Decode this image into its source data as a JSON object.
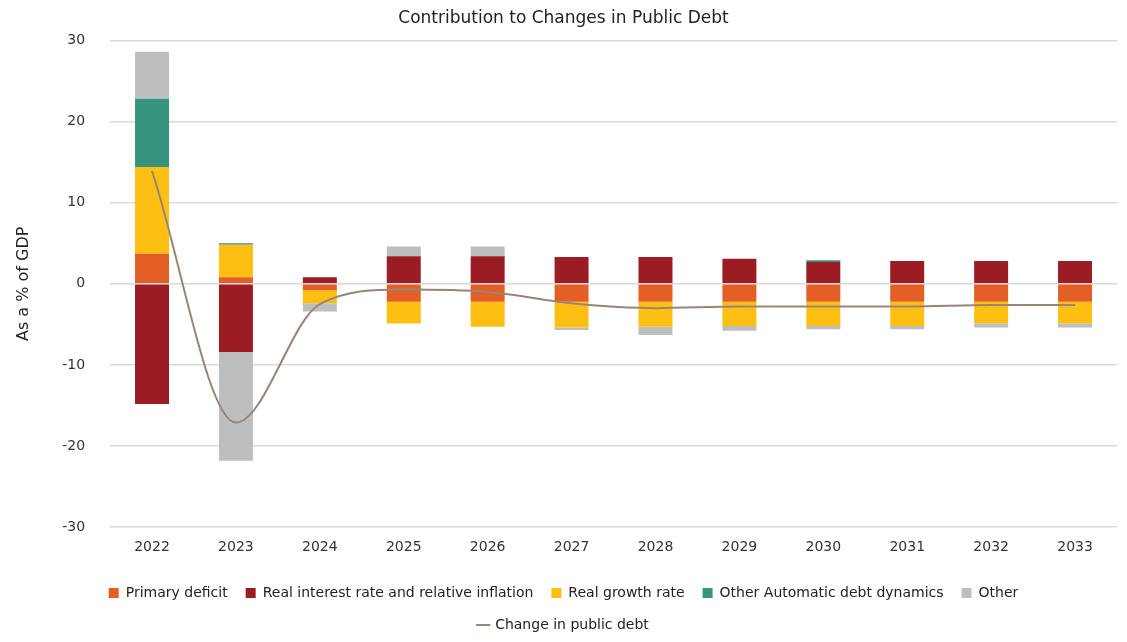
{
  "chart_data": {
    "type": "bar",
    "title": "Contribution to Changes in Public Debt",
    "ylabel": "As a % of GDP",
    "categories": [
      "2022",
      "2023",
      "2024",
      "2025",
      "2026",
      "2027",
      "2028",
      "2029",
      "2030",
      "2031",
      "2032",
      "2033"
    ],
    "stacked": true,
    "ylim": [
      -30,
      30
    ],
    "yticks": [
      -30,
      -20,
      -10,
      0,
      10,
      20,
      30
    ],
    "grid": "y",
    "legend": "bottom",
    "marker": "none",
    "series": [
      {
        "name": "Primary deficit",
        "color": "#e35f25",
        "values": [
          3.7,
          0.8,
          -0.8,
          -2.2,
          -2.2,
          -2.2,
          -2.2,
          -2.2,
          -2.2,
          -2.2,
          -2.2,
          -2.2
        ]
      },
      {
        "name": "Real interest rate and relative inflation",
        "color": "#9b1c23",
        "values": [
          -14.8,
          -8.4,
          0.8,
          3.4,
          3.4,
          3.3,
          3.3,
          3.1,
          2.7,
          2.8,
          2.8,
          2.8
        ]
      },
      {
        "name": "Real growth rate",
        "color": "#fdc012",
        "values": [
          10.7,
          4.0,
          -1.6,
          -2.7,
          -3.1,
          -3.2,
          -3.1,
          -3.0,
          -3.0,
          -3.0,
          -2.7,
          -2.7
        ]
      },
      {
        "name": "Other Automatic debt dynamics",
        "color": "#37957f",
        "values": [
          8.4,
          0.2,
          0,
          0,
          0,
          0,
          0,
          0,
          0.2,
          0,
          0,
          0
        ]
      },
      {
        "name": "Other",
        "color": "#bdbec0",
        "values": [
          5.8,
          -13.4,
          -1.0,
          1.2,
          1.2,
          -0.3,
          -1.0,
          -0.6,
          -0.4,
          -0.4,
          -0.5,
          -0.5
        ]
      },
      {
        "name": "Change in public debt",
        "type": "line",
        "color": "#9a8478",
        "values": [
          13.9,
          -17.1,
          -2.5,
          -0.7,
          -1.0,
          -2.4,
          -3.0,
          -2.8,
          -2.8,
          -2.8,
          -2.6,
          -2.6
        ]
      }
    ]
  }
}
